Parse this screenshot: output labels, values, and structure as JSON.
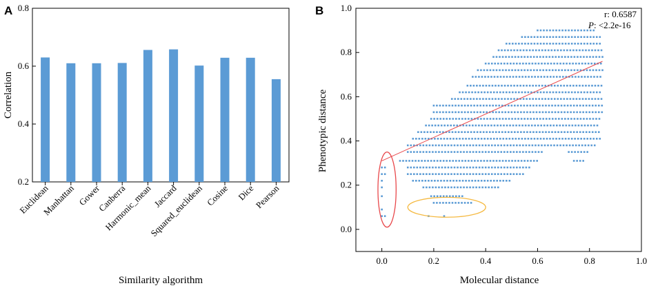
{
  "panels": [
    {
      "letter": "A"
    },
    {
      "letter": "B"
    }
  ],
  "chart_data": [
    {
      "type": "bar",
      "panel": "A",
      "title": "",
      "xlabel": "Similarity algorithm",
      "ylabel": "Correlation",
      "ylim": [
        0.2,
        0.8
      ],
      "yticks": [
        "0.2",
        "0.4",
        "0.6",
        "0.8"
      ],
      "ytick_values": [
        0.2,
        0.4,
        0.6,
        0.8
      ],
      "categories": [
        "Euclidean",
        "Manhattan",
        "Gower",
        "Canberra",
        "Harmonic_mean",
        "Jaccard",
        "Squared_euclidean",
        "Cosine",
        "Dice",
        "Pearson"
      ],
      "values": [
        0.63,
        0.61,
        0.61,
        0.611,
        0.656,
        0.658,
        0.602,
        0.629,
        0.629,
        0.555
      ],
      "bar_color": "#5b9bd5"
    },
    {
      "type": "scatter",
      "panel": "B",
      "title": "",
      "xlabel": "Molecular distance",
      "ylabel": "Phenotypic distance",
      "xlim": [
        -0.1,
        1.0
      ],
      "ylim": [
        -0.1,
        1.0
      ],
      "xticks": [
        "0.0",
        "0.2",
        "0.4",
        "0.6",
        "0.8",
        "1.0"
      ],
      "xtick_values": [
        0.0,
        0.2,
        0.4,
        0.6,
        0.8,
        1.0
      ],
      "yticks": [
        "0.0",
        "0.2",
        "0.4",
        "0.6",
        "0.8",
        "1.0"
      ],
      "ytick_values": [
        0.0,
        0.2,
        0.4,
        0.6,
        0.8,
        1.0
      ],
      "annotation_r": "r: 0.6587",
      "annotation_p_italic": "P",
      "annotation_p_rest": ": <2.2e-16",
      "point_color": "#5b9bd5",
      "fit_line": {
        "x": [
          0.0,
          0.85
        ],
        "y": [
          0.31,
          0.76
        ],
        "color": "#e8474a"
      },
      "bands": [
        {
          "y": 0.06,
          "x": [
            [
              0.0,
              0.02
            ],
            [
              0.18,
              0.19
            ],
            [
              0.24,
              0.25
            ]
          ]
        },
        {
          "y": 0.09,
          "x": [
            [
              0.0,
              0.01
            ]
          ]
        },
        {
          "y": 0.12,
          "x": [
            [
              0.2,
              0.35
            ]
          ]
        },
        {
          "y": 0.15,
          "x": [
            [
              0.0,
              0.01
            ],
            [
              0.19,
              0.32
            ]
          ]
        },
        {
          "y": 0.19,
          "x": [
            [
              0.0,
              0.01
            ],
            [
              0.16,
              0.45
            ]
          ]
        },
        {
          "y": 0.22,
          "x": [
            [
              0.0,
              0.01
            ],
            [
              0.12,
              0.5
            ]
          ]
        },
        {
          "y": 0.25,
          "x": [
            [
              0.0,
              0.02
            ],
            [
              0.1,
              0.55
            ]
          ]
        },
        {
          "y": 0.28,
          "x": [
            [
              0.0,
              0.02
            ],
            [
              0.1,
              0.57
            ]
          ]
        },
        {
          "y": 0.31,
          "x": [
            [
              0.07,
              0.6
            ],
            [
              0.74,
              0.78
            ]
          ]
        },
        {
          "y": 0.35,
          "x": [
            [
              0.1,
              0.62
            ],
            [
              0.72,
              0.8
            ]
          ]
        },
        {
          "y": 0.38,
          "x": [
            [
              0.1,
              0.82
            ]
          ]
        },
        {
          "y": 0.41,
          "x": [
            [
              0.12,
              0.84
            ]
          ]
        },
        {
          "y": 0.44,
          "x": [
            [
              0.14,
              0.84
            ]
          ]
        },
        {
          "y": 0.47,
          "x": [
            [
              0.17,
              0.84
            ]
          ]
        },
        {
          "y": 0.5,
          "x": [
            [
              0.19,
              0.84
            ]
          ]
        },
        {
          "y": 0.53,
          "x": [
            [
              0.2,
              0.85
            ]
          ]
        },
        {
          "y": 0.56,
          "x": [
            [
              0.2,
              0.85
            ]
          ]
        },
        {
          "y": 0.59,
          "x": [
            [
              0.27,
              0.85
            ]
          ]
        },
        {
          "y": 0.62,
          "x": [
            [
              0.3,
              0.85
            ]
          ]
        },
        {
          "y": 0.65,
          "x": [
            [
              0.33,
              0.85
            ]
          ]
        },
        {
          "y": 0.69,
          "x": [
            [
              0.35,
              0.85
            ]
          ]
        },
        {
          "y": 0.72,
          "x": [
            [
              0.37,
              0.85
            ]
          ]
        },
        {
          "y": 0.75,
          "x": [
            [
              0.4,
              0.85
            ]
          ]
        },
        {
          "y": 0.78,
          "x": [
            [
              0.43,
              0.85
            ]
          ]
        },
        {
          "y": 0.81,
          "x": [
            [
              0.45,
              0.85
            ]
          ]
        },
        {
          "y": 0.84,
          "x": [
            [
              0.48,
              0.85
            ]
          ]
        },
        {
          "y": 0.87,
          "x": [
            [
              0.54,
              0.84
            ]
          ]
        },
        {
          "y": 0.9,
          "x": [
            [
              0.6,
              0.82
            ]
          ]
        }
      ],
      "highlight_ellipses": [
        {
          "color": "#e8474a",
          "cx": 0.02,
          "cy": 0.18,
          "rx": 0.035,
          "ry": 0.17
        },
        {
          "color": "#f5b940",
          "cx": 0.25,
          "cy": 0.1,
          "rx": 0.15,
          "ry": 0.045
        }
      ]
    }
  ]
}
